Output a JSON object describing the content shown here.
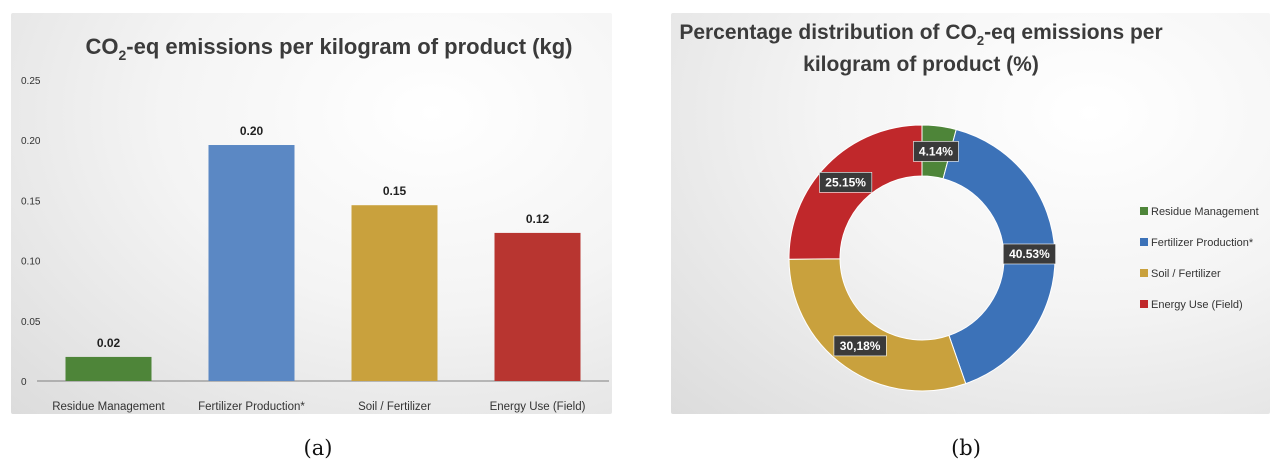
{
  "chart_data": [
    {
      "type": "bar",
      "title_pre": "CO",
      "title_sub": "2",
      "title_post": "-eq emissions per kilogram of product (kg)",
      "categories": [
        "Residue Management",
        "Fertilizer Production*",
        "Soil / Fertilizer",
        "Energy Use (Field)"
      ],
      "values": [
        0.02,
        0.196,
        0.146,
        0.123
      ],
      "value_labels": [
        "0.02",
        "0.20",
        "0.15",
        "0.12"
      ],
      "colors": [
        "#4e8539",
        "#5b88c4",
        "#c9a13d",
        "#b83530"
      ],
      "yticks": [
        "0",
        "0.05",
        "0.10",
        "0.15",
        "0.20",
        "0.25"
      ],
      "ylim": [
        0,
        0.25
      ],
      "grid": false,
      "xlabel": "",
      "ylabel": ""
    },
    {
      "type": "pie",
      "title_line1_pre": "Percentage distribution of CO",
      "title_line1_sub": "2",
      "title_line1_post": "-eq emissions per",
      "title_line2": "kilogram of product (%)",
      "labels": [
        "Residue Management",
        "Fertilizer Production*",
        "Soil / Fertilizer",
        "Energy Use (Field)"
      ],
      "values": [
        4.14,
        40.53,
        30.18,
        25.15
      ],
      "value_labels": [
        "4.14%",
        "40.53%",
        "30,18%",
        "25.15%"
      ],
      "colors": [
        "#4e8539",
        "#3c72b8",
        "#c9a13d",
        "#c0282b"
      ],
      "donut": true,
      "legend": "right"
    }
  ],
  "captions": {
    "a": "(a)",
    "b": "(b)"
  }
}
